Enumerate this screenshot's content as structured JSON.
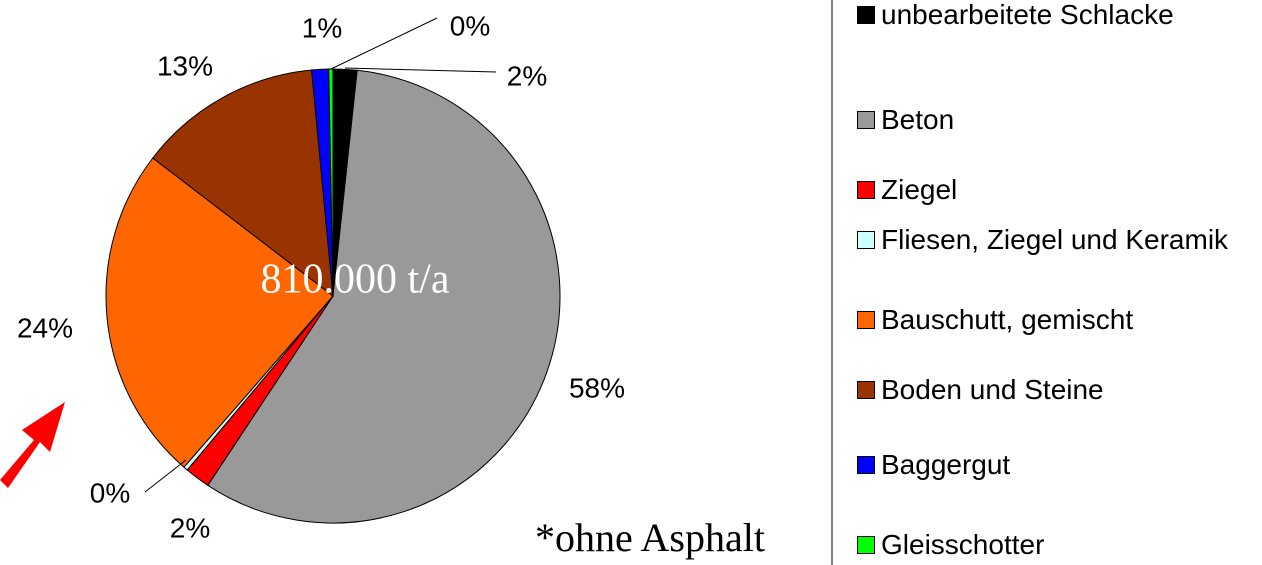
{
  "chart_data": {
    "type": "pie",
    "categories": [
      "unbearbeitete Schlacke",
      "Beton",
      "Ziegel",
      "Fliesen, Ziegel und Keramik",
      "Bauschutt, gemischt",
      "Boden und Steine",
      "Baggergut",
      "Gleisschotter"
    ],
    "values": [
      1.7,
      57.6,
      1.8,
      0.3,
      24,
      13.1,
      1.2,
      0.3
    ],
    "value_labels": [
      "2%",
      "58%",
      "2%",
      "0%",
      "24%",
      "13%",
      "1%",
      "0%"
    ],
    "colors": [
      "#000000",
      "#999999",
      "#ff0000",
      "#ccffff",
      "#ff6600",
      "#993300",
      "#0000ff",
      "#00ff00"
    ],
    "center_label": "810.000 t/a",
    "annotation": "*ohne Asphalt",
    "legend": "right"
  }
}
